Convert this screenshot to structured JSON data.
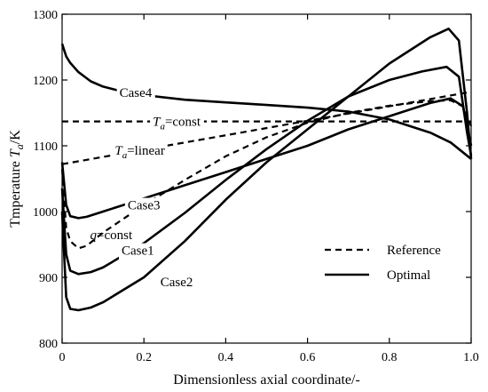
{
  "chart_data": {
    "type": "line",
    "xlabel": "Dimensionless axial coordinate/-",
    "ylabel": {
      "prefix": "Tmperature ",
      "symbol": "T",
      "subscript": "a",
      "suffix": "/K"
    },
    "xlim": [
      0,
      1
    ],
    "ylim": [
      800,
      1300
    ],
    "xticks": [
      0,
      0.2,
      0.4,
      0.6,
      0.8,
      1.0
    ],
    "xtick_labels": [
      "0",
      "0.2",
      "0.4",
      "0.6",
      "0.8",
      "1.0"
    ],
    "yticks": [
      800,
      900,
      1000,
      1100,
      1200,
      1300
    ],
    "ytick_labels": [
      "800",
      "900",
      "1000",
      "1100",
      "1200",
      "1300"
    ],
    "grid": false,
    "legend_position": "bottom-right",
    "legend": [
      {
        "label": "Reference",
        "style": "dashed"
      },
      {
        "label": "Optimal",
        "style": "solid"
      }
    ],
    "series": [
      {
        "id": "ta-const",
        "style": "dashed",
        "points": [
          [
            0,
            1137
          ],
          [
            0.2,
            1137
          ],
          [
            0.4,
            1137
          ],
          [
            0.6,
            1137
          ],
          [
            0.8,
            1137
          ],
          [
            1.0,
            1137
          ]
        ],
        "label": {
          "symbol": "T",
          "subscript": "a",
          "suffix": "=const"
        },
        "label_at": [
          0.28,
          1137
        ],
        "label_gap": true
      },
      {
        "id": "ta-linear",
        "style": "dashed",
        "points": [
          [
            0,
            1072
          ],
          [
            0.2,
            1094
          ],
          [
            0.4,
            1116
          ],
          [
            0.6,
            1138
          ],
          [
            0.8,
            1160
          ],
          [
            1.0,
            1182
          ]
        ],
        "label": {
          "symbol": "T",
          "subscript": "a",
          "suffix": "=linear"
        },
        "label_at": [
          0.19,
          1093
        ],
        "label_gap": true
      },
      {
        "id": "q-const",
        "style": "dashed",
        "points": [
          [
            0,
            1065
          ],
          [
            0.01,
            975
          ],
          [
            0.02,
            955
          ],
          [
            0.04,
            944
          ],
          [
            0.06,
            948
          ],
          [
            0.1,
            968
          ],
          [
            0.2,
            1010
          ],
          [
            0.3,
            1048
          ],
          [
            0.4,
            1084
          ],
          [
            0.5,
            1113
          ],
          [
            0.6,
            1135
          ],
          [
            0.7,
            1150
          ],
          [
            0.8,
            1161
          ],
          [
            0.9,
            1168
          ],
          [
            0.95,
            1169
          ],
          [
            0.98,
            1160
          ],
          [
            1.0,
            1130
          ]
        ],
        "label": {
          "symbol": "q",
          "subscript": "",
          "suffix": "=const"
        },
        "label_at": [
          0.12,
          965
        ],
        "label_gap": false
      },
      {
        "id": "case1",
        "style": "solid",
        "points": [
          [
            0,
            1035
          ],
          [
            0.01,
            935
          ],
          [
            0.02,
            910
          ],
          [
            0.04,
            905
          ],
          [
            0.07,
            908
          ],
          [
            0.1,
            915
          ],
          [
            0.2,
            952
          ],
          [
            0.3,
            998
          ],
          [
            0.4,
            1048
          ],
          [
            0.5,
            1095
          ],
          [
            0.6,
            1138
          ],
          [
            0.7,
            1175
          ],
          [
            0.8,
            1200
          ],
          [
            0.88,
            1213
          ],
          [
            0.94,
            1220
          ],
          [
            0.97,
            1205
          ],
          [
            0.99,
            1120
          ],
          [
            1.0,
            1085
          ]
        ],
        "label": {
          "symbol": "",
          "subscript": "",
          "suffix": "Case1"
        },
        "label_at": [
          0.185,
          941
        ],
        "label_gap": true
      },
      {
        "id": "case2",
        "style": "solid",
        "points": [
          [
            0,
            1000
          ],
          [
            0.01,
            870
          ],
          [
            0.02,
            852
          ],
          [
            0.04,
            850
          ],
          [
            0.07,
            854
          ],
          [
            0.1,
            862
          ],
          [
            0.2,
            900
          ],
          [
            0.3,
            955
          ],
          [
            0.4,
            1018
          ],
          [
            0.5,
            1075
          ],
          [
            0.6,
            1125
          ],
          [
            0.7,
            1175
          ],
          [
            0.8,
            1225
          ],
          [
            0.9,
            1265
          ],
          [
            0.945,
            1278
          ],
          [
            0.97,
            1260
          ],
          [
            0.99,
            1150
          ],
          [
            1.0,
            1080
          ]
        ],
        "label": {
          "symbol": "",
          "subscript": "",
          "suffix": "Case2"
        },
        "label_at": [
          0.28,
          893
        ],
        "label_gap": true
      },
      {
        "id": "case3",
        "style": "solid",
        "points": [
          [
            0,
            1075
          ],
          [
            0.01,
            1010
          ],
          [
            0.02,
            993
          ],
          [
            0.04,
            990
          ],
          [
            0.06,
            992
          ],
          [
            0.1,
            1000
          ],
          [
            0.2,
            1020
          ],
          [
            0.3,
            1040
          ],
          [
            0.4,
            1060
          ],
          [
            0.5,
            1080
          ],
          [
            0.6,
            1100
          ],
          [
            0.7,
            1125
          ],
          [
            0.8,
            1145
          ],
          [
            0.9,
            1165
          ],
          [
            0.95,
            1172
          ],
          [
            0.98,
            1160
          ],
          [
            1.0,
            1100
          ]
        ],
        "label": {
          "symbol": "",
          "subscript": "",
          "suffix": "Case3"
        },
        "label_at": [
          0.2,
          1010
        ],
        "label_gap": true
      },
      {
        "id": "case4",
        "style": "solid",
        "points": [
          [
            0,
            1255
          ],
          [
            0.01,
            1236
          ],
          [
            0.02,
            1226
          ],
          [
            0.04,
            1212
          ],
          [
            0.07,
            1198
          ],
          [
            0.1,
            1190
          ],
          [
            0.15,
            1182
          ],
          [
            0.2,
            1177
          ],
          [
            0.3,
            1170
          ],
          [
            0.4,
            1166
          ],
          [
            0.5,
            1162
          ],
          [
            0.6,
            1158
          ],
          [
            0.7,
            1152
          ],
          [
            0.8,
            1140
          ],
          [
            0.9,
            1120
          ],
          [
            0.95,
            1105
          ],
          [
            1.0,
            1080
          ]
        ],
        "label": {
          "symbol": "",
          "subscript": "",
          "suffix": "Case4"
        },
        "label_at": [
          0.18,
          1181
        ],
        "label_gap": true
      }
    ]
  }
}
